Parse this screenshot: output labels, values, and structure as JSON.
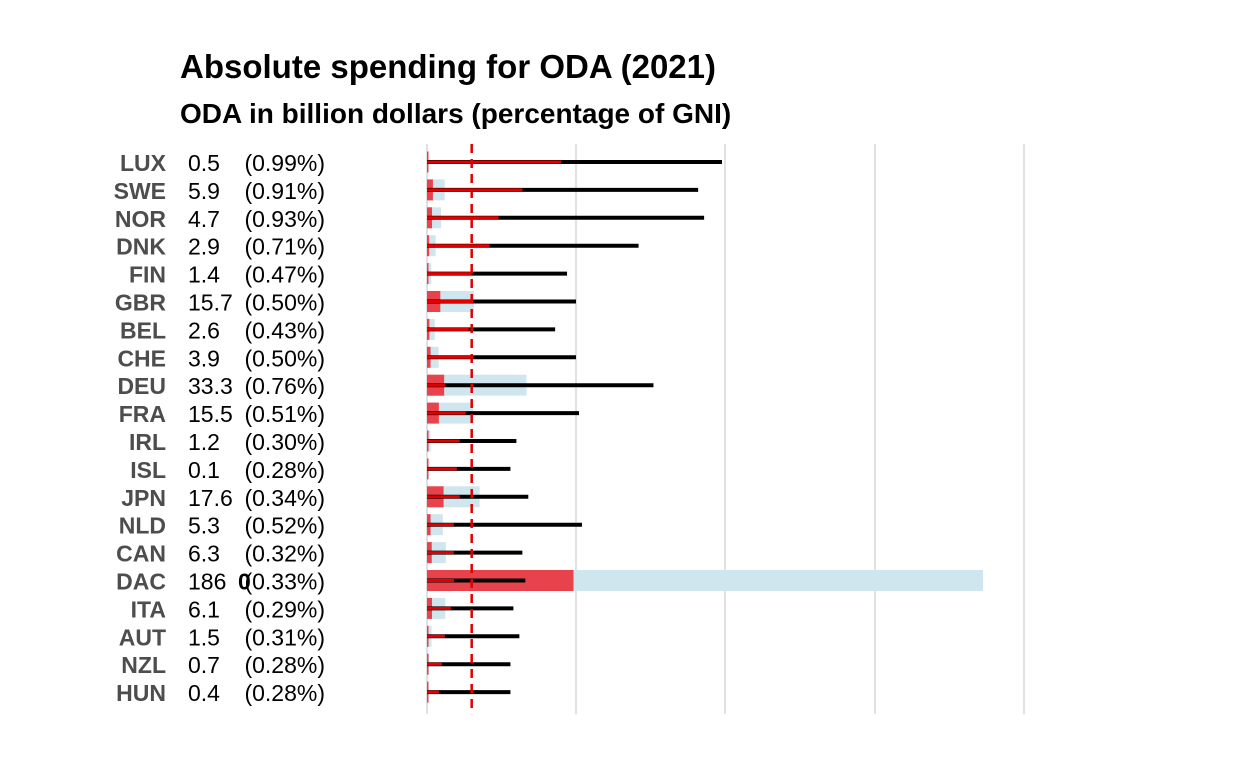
{
  "chart_data": {
    "type": "bar",
    "title": "Absolute spending for ODA (2021)",
    "subtitle": "ODA in billion dollars (percentage of GNI)",
    "categories": [
      "LUX",
      "SWE",
      "NOR",
      "DNK",
      "FIN",
      "GBR",
      "BEL",
      "CHE",
      "DEU",
      "FRA",
      "IRL",
      "ISL",
      "JPN",
      "NLD",
      "CAN",
      "DAC",
      "ITA",
      "AUT",
      "NZL",
      "HUN"
    ],
    "value_labels": [
      "0.5",
      "5.9",
      "4.7",
      "2.9",
      "1.4",
      "15.7",
      "2.6",
      "3.9",
      "33.3",
      "15.5",
      "1.2",
      "0.1",
      "17.6",
      "5.3",
      "6.3",
      "186",
      "6.1",
      "1.5",
      "0.7",
      "0.4"
    ],
    "pct_labels": [
      "(0.99%)",
      "(0.91%)",
      "(0.93%)",
      "(0.71%)",
      "(0.47%)",
      "(0.50%)",
      "(0.43%)",
      "(0.50%)",
      "(0.76%)",
      "(0.51%)",
      "(0.30%)",
      "(0.28%)",
      "(0.34%)",
      "(0.52%)",
      "(0.32%)",
      "(0.33%)",
      "(0.29%)",
      "(0.31%)",
      "(0.28%)",
      "(0.28%)"
    ],
    "dac_extra_label": "0",
    "series": [
      {
        "values": [
          0.5,
          5.9,
          4.7,
          2.9,
          1.4,
          15.7,
          2.6,
          3.9,
          33.3,
          15.5,
          1.2,
          0.1,
          17.6,
          5.3,
          6.3,
          186,
          6.1,
          1.5,
          0.7,
          0.4
        ],
        "color": "#cfe6ee"
      },
      {
        "values": [
          0.06,
          2.0,
          1.7,
          0.7,
          0.2,
          4.5,
          0.8,
          1.2,
          5.8,
          4.0,
          0.2,
          0.02,
          5.6,
          1.2,
          1.6,
          49.5,
          1.7,
          0.4,
          0.2,
          0.1
        ],
        "color": "#e8424c"
      },
      {
        "values": [
          0.99,
          0.91,
          0.93,
          0.71,
          0.47,
          0.5,
          0.43,
          0.5,
          0.76,
          0.51,
          0.3,
          0.28,
          0.34,
          0.52,
          0.32,
          0.33,
          0.29,
          0.31,
          0.28,
          0.28
        ],
        "color": "#000000"
      },
      {
        "values": [
          0.45,
          0.32,
          0.24,
          0.21,
          0.15,
          0.15,
          0.14,
          0.15,
          0.06,
          0.13,
          0.11,
          0.1,
          0.11,
          0.09,
          0.09,
          0.09,
          0.08,
          0.06,
          0.05,
          0.04
        ],
        "color": "#e10000"
      }
    ],
    "reference_line": {
      "value": 0.15,
      "color": "#e10000",
      "style": "dashed"
    },
    "gridlines": true
  }
}
